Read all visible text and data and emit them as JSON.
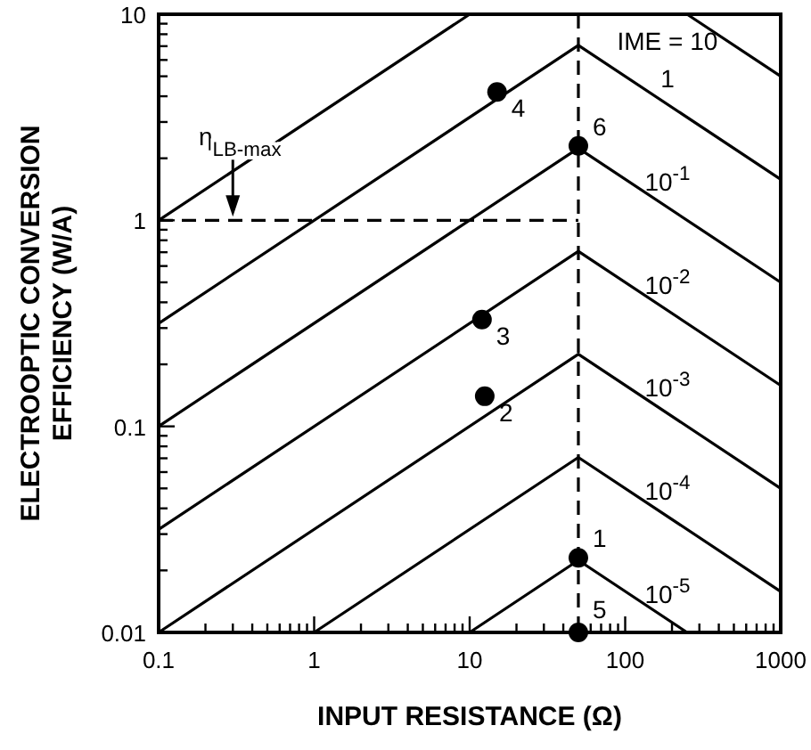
{
  "chart_data": {
    "type": "line",
    "xlabel": "INPUT RESISTANCE (Ω)",
    "ylabel": "ELECTROOPTIC CONVERSION\nEFFICIENCY (W/A)",
    "log": "xy",
    "grid": false,
    "line_style": "solid",
    "xlim": [
      0.1,
      1000
    ],
    "ylim": [
      0.01,
      10
    ],
    "xticks": [
      0.1,
      {
        "value": 0.2,
        "label": null
      },
      {
        "value": 0.3,
        "label": null
      },
      {
        "value": 0.4,
        "label": null
      },
      {
        "value": 0.5,
        "label": null
      },
      {
        "value": 0.6,
        "label": null
      },
      {
        "value": 0.7,
        "label": null
      },
      {
        "value": 0.8,
        "label": null
      },
      {
        "value": 0.9,
        "label": null
      },
      1,
      {
        "value": 2,
        "label": null
      },
      {
        "value": 3,
        "label": null
      },
      {
        "value": 4,
        "label": null
      },
      {
        "value": 5,
        "label": null
      },
      {
        "value": 6,
        "label": null
      },
      {
        "value": 7,
        "label": null
      },
      {
        "value": 8,
        "label": null
      },
      {
        "value": 9,
        "label": null
      },
      10,
      {
        "value": 20,
        "label": null
      },
      {
        "value": 30,
        "label": null
      },
      {
        "value": 40,
        "label": null
      },
      {
        "value": 50,
        "label": null
      },
      {
        "value": 60,
        "label": null
      },
      {
        "value": 70,
        "label": null
      },
      {
        "value": 80,
        "label": null
      },
      {
        "value": 90,
        "label": null
      },
      100,
      {
        "value": 200,
        "label": null
      },
      {
        "value": 300,
        "label": null
      },
      {
        "value": 400,
        "label": null
      },
      {
        "value": 500,
        "label": null
      },
      {
        "value": 600,
        "label": null
      },
      {
        "value": 700,
        "label": null
      },
      {
        "value": 800,
        "label": null
      },
      {
        "value": 900,
        "label": null
      },
      1000
    ],
    "yticks": [
      0.01,
      {
        "value": 0.02,
        "label": null
      },
      {
        "value": 0.03,
        "label": null
      },
      {
        "value": 0.04,
        "label": null
      },
      {
        "value": 0.05,
        "label": null
      },
      {
        "value": 0.06,
        "label": null
      },
      {
        "value": 0.07,
        "label": null
      },
      {
        "value": 0.08,
        "label": null
      },
      {
        "value": 0.09,
        "label": null
      },
      0.1,
      {
        "value": 0.2,
        "label": null
      },
      {
        "value": 0.3,
        "label": null
      },
      {
        "value": 0.4,
        "label": null
      },
      {
        "value": 0.5,
        "label": null
      },
      {
        "value": 0.6,
        "label": null
      },
      {
        "value": 0.7,
        "label": null
      },
      {
        "value": 0.8,
        "label": null
      },
      {
        "value": 0.9,
        "label": null
      },
      1,
      {
        "value": 2,
        "label": null
      },
      {
        "value": 3,
        "label": null
      },
      {
        "value": 4,
        "label": null
      },
      {
        "value": 5,
        "label": null
      },
      {
        "value": 6,
        "label": null
      },
      {
        "value": 7,
        "label": null
      },
      {
        "value": 8,
        "label": null
      },
      {
        "value": 9,
        "label": null
      },
      10
    ],
    "series": [
      {
        "name": "IME = 10",
        "color": "#000000",
        "x": [
          0.1,
          10,
          50,
          250,
          1000
        ],
        "values": [
          1,
          10,
          null,
          10,
          5
        ]
      },
      {
        "name": "1",
        "color": "#000000",
        "x": [
          0.1,
          50,
          1000
        ],
        "values": [
          0.316,
          7.07,
          1.58
        ]
      },
      {
        "name": "10$^{-1}$",
        "color": "#000000",
        "x": [
          0.1,
          50,
          1000
        ],
        "values": [
          0.1,
          2.24,
          0.5
        ]
      },
      {
        "name": "10$^{-2}$",
        "color": "#000000",
        "x": [
          0.1,
          50,
          1000
        ],
        "values": [
          0.0316,
          0.707,
          0.158
        ]
      },
      {
        "name": "10$^{-3}$",
        "color": "#000000",
        "x": [
          0.1,
          50,
          1000
        ],
        "values": [
          0.01,
          0.224,
          0.05
        ]
      },
      {
        "name": "10$^{-4}$",
        "color": "#000000",
        "x": [
          1,
          50,
          1000
        ],
        "values": [
          0.01,
          0.0707,
          0.0158
        ]
      },
      {
        "name": "10$^{-5}$",
        "color": "#000000",
        "x": [
          10,
          50,
          250
        ],
        "values": [
          0.01,
          0.0224,
          0.01
        ]
      },
      {
        "type": "line",
        "line_style": "dashed",
        "color": "#000000",
        "x": [
          0.1,
          50
        ],
        "values": [
          1,
          1
        ]
      },
      {
        "type": "scatter",
        "marker": "circle",
        "color": "#000000",
        "x": [
          50,
          12.5,
          12,
          15,
          50,
          50
        ],
        "values": [
          0.023,
          0.14,
          0.33,
          4.2,
          0.01,
          2.3
        ]
      }
    ],
    "ref_lines": [
      {
        "axis": "x",
        "value": 50,
        "line_style": "dashed",
        "color": "#000000"
      }
    ],
    "annotations": [
      {
        "text": "1",
        "x": 50,
        "y": 0.023
      },
      {
        "text": "2",
        "x": 12.5,
        "y": 0.14
      },
      {
        "text": "3",
        "x": 12,
        "y": 0.33
      },
      {
        "text": "4",
        "x": 15,
        "y": 4.2
      },
      {
        "text": "5",
        "x": 50,
        "y": 0.01
      },
      {
        "text": "6",
        "x": 50,
        "y": 2.3
      },
      {
        "text": "η$_{LB-max}$",
        "x": 0.3,
        "y": 1
      }
    ]
  }
}
